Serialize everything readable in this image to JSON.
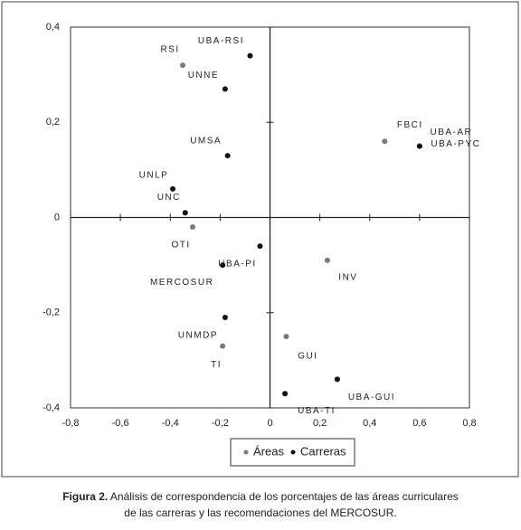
{
  "chart_data": {
    "type": "scatter",
    "xlim": [
      -0.8,
      0.8
    ],
    "ylim": [
      -0.4,
      0.4
    ],
    "xticks": [
      {
        "value": -0.8,
        "label": "-0,8"
      },
      {
        "value": -0.6,
        "label": "-0,6"
      },
      {
        "value": -0.4,
        "label": "-0,4"
      },
      {
        "value": -0.2,
        "label": "-0,2"
      },
      0,
      {
        "value": 0.2,
        "label": "0,2"
      },
      {
        "value": 0.4,
        "label": "0,4"
      },
      {
        "value": 0.6,
        "label": "0,6"
      },
      {
        "value": 0.8,
        "label": "0,8"
      }
    ],
    "yticks": [
      {
        "value": -0.4,
        "label": "-0,4"
      },
      {
        "value": -0.2,
        "label": "-0,2"
      },
      0,
      {
        "value": 0.2,
        "label": "0,2"
      },
      {
        "value": 0.4,
        "label": "0,4"
      }
    ],
    "series": [
      {
        "name": "Áreas",
        "color": "#7a7a7a",
        "labels": [
          "RSI",
          "FBCI",
          "OTI",
          "INV",
          "GUI",
          "TI"
        ],
        "x": [
          -0.35,
          0.46,
          -0.31,
          0.23,
          0.065,
          -0.19
        ],
        "values": [
          0.32,
          0.16,
          -0.02,
          -0.09,
          -0.25,
          -0.27
        ]
      },
      {
        "name": "Carreras",
        "color": "#111111",
        "labels": [
          "UBA-RSI",
          "UNNE",
          "UMSA",
          "UNLP",
          "UNC",
          "UBA-AR",
          "UBA-PYC",
          "UBA-PI",
          "MERCOSUR",
          "UNMDP",
          "UBA-GUI",
          "UBA-TI"
        ],
        "x": [
          -0.08,
          -0.18,
          -0.17,
          -0.39,
          -0.34,
          0.6,
          0.6,
          -0.04,
          -0.19,
          -0.18,
          0.27,
          0.06
        ],
        "values": [
          0.34,
          0.27,
          0.13,
          0.06,
          0.01,
          0.15,
          0.15,
          -0.06,
          -0.1,
          -0.21,
          -0.34,
          -0.37
        ]
      }
    ],
    "caption": {
      "label": "Figura 2.",
      "text": "Análisis de correspondencia de los porcentajes de las áreas curriculares",
      "text2": "de las carreras y las recomendaciones del MERCOSUR."
    }
  }
}
